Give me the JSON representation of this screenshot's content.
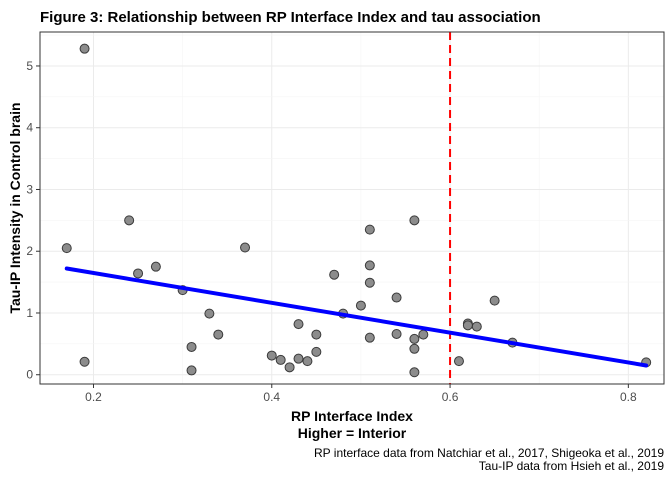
{
  "chart_data": {
    "type": "scatter",
    "title": "Figure 3: Relationship between RP Interface Index and tau association",
    "xlabel": "RP Interface Index",
    "xlabel_sub": "Higher = Interior",
    "ylabel": "Tau-IP Intensity in Control brain",
    "caption_lines": [
      "RP interface data from Natchiar et al., 2017, Shigeoka et al., 2019",
      "Tau-IP data from Hsieh et al., 2019"
    ],
    "xlim": [
      0.14,
      0.84
    ],
    "ylim": [
      -0.15,
      5.55
    ],
    "x_ticks": [
      0.2,
      0.4,
      0.6,
      0.8
    ],
    "x_tick_labels": [
      "0.2",
      "0.4",
      "0.6",
      "0.8"
    ],
    "y_ticks": [
      0,
      1,
      2,
      3,
      4,
      5
    ],
    "y_tick_labels": [
      "0",
      "1",
      "2",
      "3",
      "4",
      "5"
    ],
    "grid": true,
    "point_color": "#8c8c8c",
    "points": [
      {
        "x": 0.17,
        "y": 2.05
      },
      {
        "x": 0.19,
        "y": 5.28
      },
      {
        "x": 0.19,
        "y": 0.21
      },
      {
        "x": 0.24,
        "y": 2.5
      },
      {
        "x": 0.25,
        "y": 1.64
      },
      {
        "x": 0.27,
        "y": 1.75
      },
      {
        "x": 0.3,
        "y": 1.37
      },
      {
        "x": 0.31,
        "y": 0.45
      },
      {
        "x": 0.31,
        "y": 0.07
      },
      {
        "x": 0.33,
        "y": 0.99
      },
      {
        "x": 0.34,
        "y": 0.65
      },
      {
        "x": 0.37,
        "y": 2.06
      },
      {
        "x": 0.4,
        "y": 0.31
      },
      {
        "x": 0.41,
        "y": 0.24
      },
      {
        "x": 0.42,
        "y": 0.12
      },
      {
        "x": 0.43,
        "y": 0.82
      },
      {
        "x": 0.43,
        "y": 0.26
      },
      {
        "x": 0.44,
        "y": 0.22
      },
      {
        "x": 0.45,
        "y": 0.37
      },
      {
        "x": 0.45,
        "y": 0.65
      },
      {
        "x": 0.47,
        "y": 1.62
      },
      {
        "x": 0.48,
        "y": 0.99
      },
      {
        "x": 0.5,
        "y": 1.12
      },
      {
        "x": 0.51,
        "y": 2.35
      },
      {
        "x": 0.51,
        "y": 1.77
      },
      {
        "x": 0.51,
        "y": 1.49
      },
      {
        "x": 0.51,
        "y": 0.6
      },
      {
        "x": 0.54,
        "y": 1.25
      },
      {
        "x": 0.54,
        "y": 0.66
      },
      {
        "x": 0.56,
        "y": 2.5
      },
      {
        "x": 0.56,
        "y": 0.58
      },
      {
        "x": 0.56,
        "y": 0.42
      },
      {
        "x": 0.56,
        "y": 0.04
      },
      {
        "x": 0.57,
        "y": 0.65
      },
      {
        "x": 0.61,
        "y": 0.22
      },
      {
        "x": 0.62,
        "y": 0.83
      },
      {
        "x": 0.62,
        "y": 0.8
      },
      {
        "x": 0.63,
        "y": 0.78
      },
      {
        "x": 0.65,
        "y": 1.2
      },
      {
        "x": 0.67,
        "y": 0.52
      },
      {
        "x": 0.82,
        "y": 0.2
      }
    ],
    "trend_line": {
      "color": "#0000ff",
      "x": [
        0.17,
        0.82
      ],
      "y": [
        1.72,
        0.15
      ]
    },
    "reference_line": {
      "color": "#ff0000",
      "style": "dashed",
      "x": 0.6
    }
  }
}
